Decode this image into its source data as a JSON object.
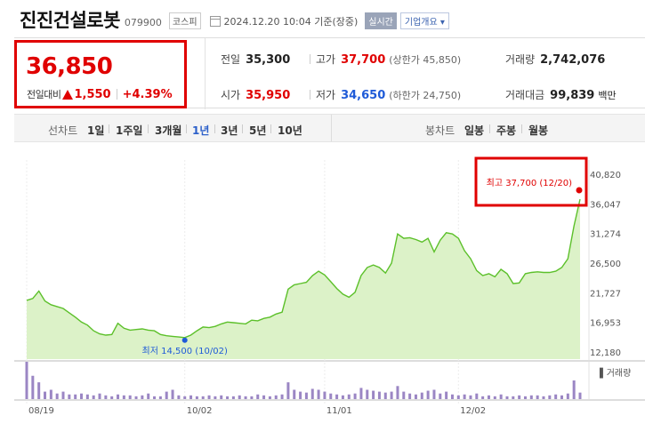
{
  "header": {
    "name": "진진건설로봇",
    "code": "079900",
    "market": "코스피",
    "datetime": "2024.12.20 10:04 기준(장중)",
    "realtime": "실시간",
    "company_btn": "기업개요 ▾"
  },
  "price": {
    "current": "36,850",
    "change_label": "전일대비",
    "change": "1,550",
    "change_pct": "+4.39%"
  },
  "stats": {
    "prev_label": "전일",
    "prev": "35,300",
    "high_label": "고가",
    "high": "37,700",
    "upper_label": "(상한가",
    "upper": "45,850)",
    "volume_label": "거래량",
    "volume": "2,742,076",
    "open_label": "시가",
    "open": "35,950",
    "low_label": "저가",
    "low": "34,650",
    "lower_label": "(하한가",
    "lower": "24,750)",
    "amount_label": "거래대금",
    "amount": "99,839",
    "amount_unit": "백만"
  },
  "tabs": {
    "line_label": "선차트",
    "periods": [
      "1일",
      "1주일",
      "3개월",
      "1년",
      "3년",
      "5년",
      "10년"
    ],
    "active": "1년",
    "candle_label": "봉차트",
    "candles": [
      "일봉",
      "주봉",
      "월봉"
    ]
  },
  "colors": {
    "up": "#e00000",
    "down": "#1f5bd8",
    "line": "#5cc02a",
    "fill": "#dcf2c8",
    "volume": "#9b86c4"
  },
  "chart_data": {
    "type": "area",
    "title": "",
    "xlabel": "",
    "ylabel": "",
    "x_ticks": [
      "08/19",
      "10/02",
      "11/01",
      "12/02"
    ],
    "y_ticks": [
      "40,820",
      "36,047",
      "31,274",
      "26,500",
      "21,727",
      "16,953",
      "12,180"
    ],
    "ylim": [
      12180,
      40820
    ],
    "annotations": {
      "high_text": "최고 37,700 (12/20)",
      "low_text": "최저 14,500 (10/02)"
    },
    "volume_label": "▌거래량",
    "series": [
      {
        "values": [
          20500,
          20800,
          22000,
          20400,
          19800,
          19500,
          19200,
          18500,
          17800,
          17000,
          16500,
          15600,
          15100,
          14900,
          15000,
          16800,
          16000,
          15700,
          15800,
          15900,
          15700,
          15600,
          15000,
          14800,
          14700,
          14600,
          14500,
          14900,
          15600,
          16200,
          16100,
          16300,
          16700,
          17000,
          16900,
          16800,
          16700,
          17300,
          17200,
          17600,
          17800,
          18300,
          18600,
          22300,
          23000,
          23200,
          23400,
          24500,
          25200,
          24600,
          23500,
          22400,
          21500,
          21000,
          21800,
          24500,
          25800,
          26200,
          25800,
          24900,
          26500,
          31200,
          30500,
          30600,
          30300,
          29900,
          30500,
          28300,
          30200,
          31400,
          31200,
          30500,
          28500,
          27200,
          25300,
          24500,
          24800,
          24300,
          25500,
          24800,
          23200,
          23300,
          24800,
          25000,
          25100,
          25000,
          25000,
          25200,
          25800,
          27200,
          32500,
          36800
        ]
      }
    ],
    "volume": [
      40,
      25,
      18,
      8,
      10,
      6,
      8,
      5,
      5,
      6,
      5,
      4,
      6,
      4,
      3,
      5,
      4,
      4,
      3,
      4,
      6,
      3,
      3,
      8,
      10,
      4,
      3,
      4,
      3,
      3,
      4,
      3,
      4,
      3,
      3,
      4,
      3,
      3,
      5,
      4,
      3,
      4,
      5,
      18,
      10,
      8,
      7,
      11,
      10,
      8,
      6,
      5,
      4,
      5,
      6,
      12,
      10,
      9,
      8,
      7,
      8,
      14,
      8,
      6,
      5,
      7,
      9,
      10,
      6,
      8,
      5,
      4,
      5,
      4,
      6,
      3,
      4,
      3,
      5,
      3,
      3,
      4,
      3,
      4,
      4,
      3,
      4,
      5,
      4,
      6,
      20,
      7
    ]
  }
}
